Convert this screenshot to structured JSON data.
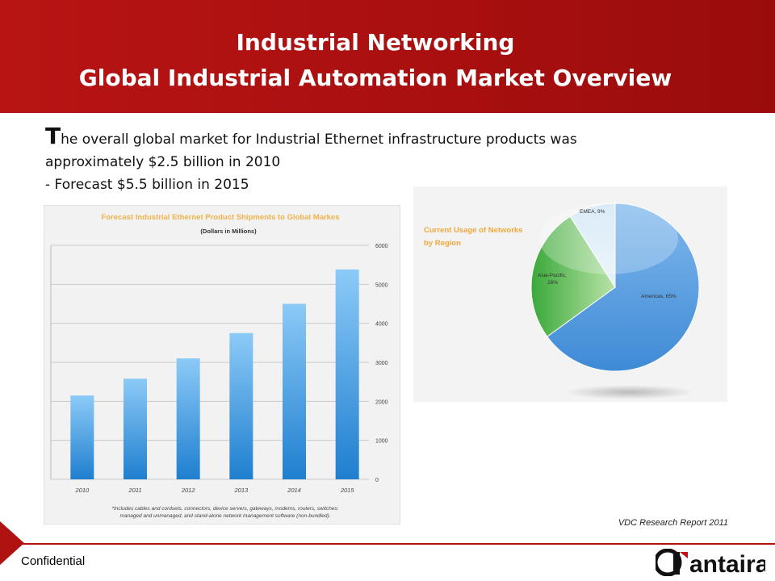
{
  "slide": {
    "title_line1": "Industrial Networking",
    "title_line2": "Global Industrial Automation Market Overview",
    "body": {
      "dropcap": "T",
      "line1_rest": "he overall global market for Industrial Ethernet infrastructure products was",
      "line2": "approximately $2.5 billion in 2010",
      "line3": "- Forecast $5.5 billion in 2015"
    },
    "source": "VDC Research Report 2011",
    "footer": "Confidential",
    "logo_text": "antaira",
    "colors": {
      "brand_red": "#b01111",
      "bar_blue": "#4aa3e8",
      "pie_blue": "#4a90d9",
      "pie_green": "#4cb04c"
    }
  },
  "chart_data": [
    {
      "type": "bar",
      "title": "Forecast Industrial Ethernet Product Shipments to Global Markes",
      "subtitle": "(Dollars in Millions)",
      "categories": [
        "2010",
        "2011",
        "2012",
        "2013",
        "2014",
        "2015"
      ],
      "values": [
        2150,
        2580,
        3100,
        3750,
        4500,
        5380
      ],
      "ylim": [
        0,
        6000
      ],
      "yticks": [
        "0",
        "1000",
        "2000",
        "3000",
        "4000",
        "5000",
        "6000"
      ],
      "footnote_line1": "*Includes cables and cordsets, connectors, device servers, gateways, modems, routers, switches:",
      "footnote_line2": "managed and unmanaged, and stand-alone network management software (non-bundled)."
    },
    {
      "type": "pie",
      "title_line1": "Current Usage of Networks",
      "title_line2": "by Region",
      "slices": [
        {
          "label": "Americas, 65%",
          "value": 65
        },
        {
          "label": "Asia-Pacific,",
          "label2": "26%",
          "value": 26
        },
        {
          "label": "EMEA, 9%",
          "value": 9
        }
      ]
    }
  ]
}
